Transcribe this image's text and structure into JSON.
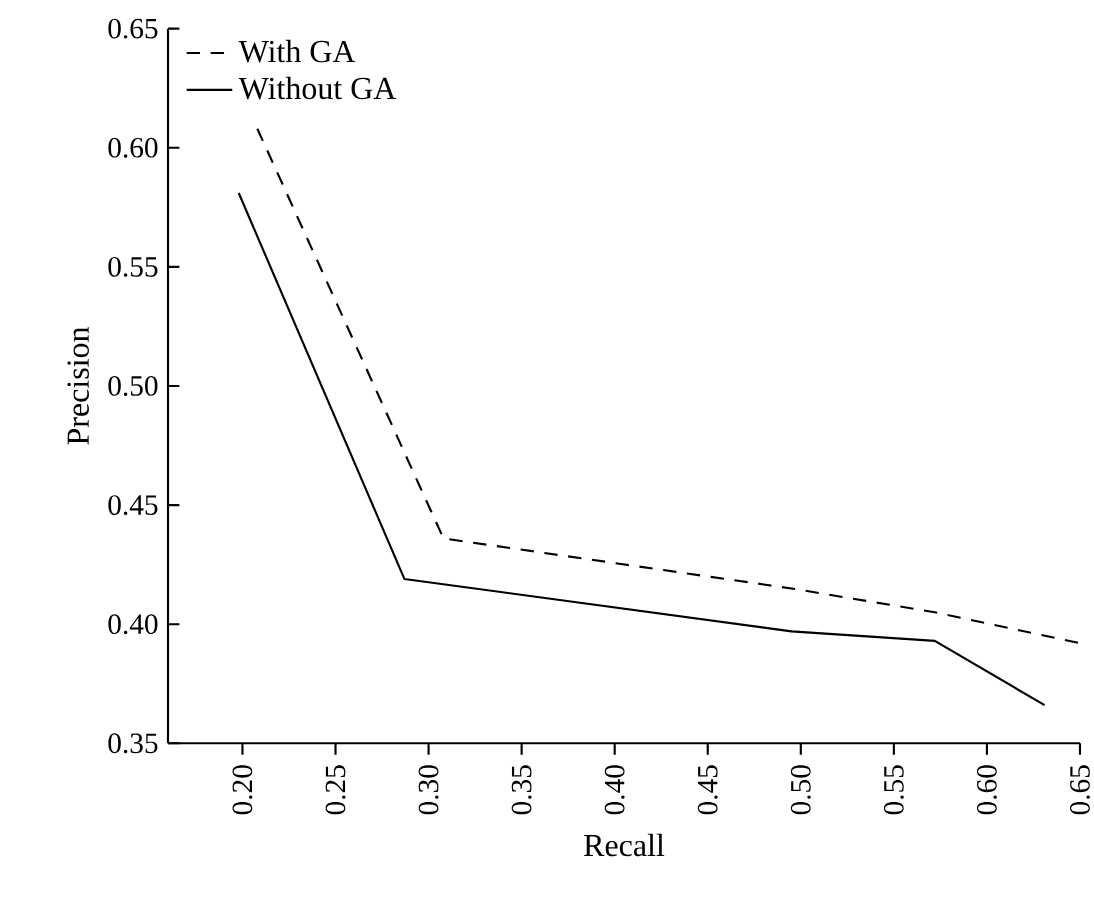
{
  "chart_data": {
    "type": "line",
    "xlabel": "Recall",
    "ylabel": "Precision",
    "legend": "top left",
    "grid": false,
    "xlim": [
      0.16,
      0.65
    ],
    "ylim": [
      0.35,
      0.65
    ],
    "xticks": [
      {
        "value": 0.2,
        "label": "0.20"
      },
      {
        "value": 0.25,
        "label": "0.25"
      },
      {
        "value": 0.3,
        "label": "0.30"
      },
      {
        "value": 0.35,
        "label": "0.35"
      },
      {
        "value": 0.4,
        "label": "0.40"
      },
      {
        "value": 0.45,
        "label": "0.45"
      },
      {
        "value": 0.5,
        "label": "0.50"
      },
      {
        "value": 0.55,
        "label": "0.55"
      },
      {
        "value": 0.6,
        "label": "0.60"
      },
      {
        "value": 0.65,
        "label": "0.65"
      }
    ],
    "yticks": [
      {
        "value": 0.35,
        "label": "0.35"
      },
      {
        "value": 0.4,
        "label": "0.40"
      },
      {
        "value": 0.45,
        "label": "0.45"
      },
      {
        "value": 0.5,
        "label": "0.50"
      },
      {
        "value": 0.55,
        "label": "0.55"
      },
      {
        "value": 0.6,
        "label": "0.60"
      },
      {
        "value": 0.65,
        "label": "0.65"
      }
    ],
    "series": [
      {
        "name": "With GA",
        "color": "#000000",
        "line_style": "dashed",
        "x": [
          0.208,
          0.308,
          0.495,
          0.572,
          0.65
        ],
        "values": [
          0.608,
          0.436,
          0.415,
          0.405,
          0.392
        ]
      },
      {
        "name": "Without GA",
        "color": "#000000",
        "line_style": "solid",
        "x": [
          0.198,
          0.287,
          0.495,
          0.572,
          0.631
        ],
        "values": [
          0.581,
          0.419,
          0.397,
          0.393,
          0.366
        ]
      }
    ]
  }
}
